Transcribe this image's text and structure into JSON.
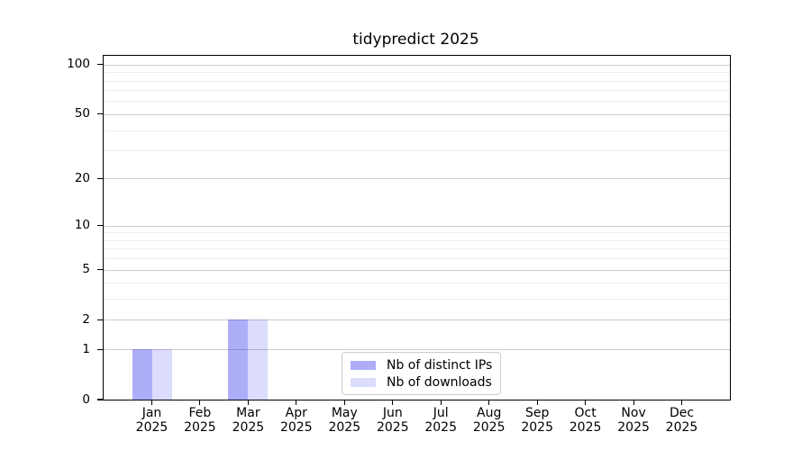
{
  "title": "tidypredict 2025",
  "chart_data": {
    "type": "bar",
    "title": "tidypredict 2025",
    "xlabel": "",
    "ylabel": "",
    "categories": [
      {
        "line1": "Jan",
        "line2": "2025"
      },
      {
        "line1": "Feb",
        "line2": "2025"
      },
      {
        "line1": "Mar",
        "line2": "2025"
      },
      {
        "line1": "Apr",
        "line2": "2025"
      },
      {
        "line1": "May",
        "line2": "2025"
      },
      {
        "line1": "Jun",
        "line2": "2025"
      },
      {
        "line1": "Jul",
        "line2": "2025"
      },
      {
        "line1": "Aug",
        "line2": "2025"
      },
      {
        "line1": "Sep",
        "line2": "2025"
      },
      {
        "line1": "Oct",
        "line2": "2025"
      },
      {
        "line1": "Nov",
        "line2": "2025"
      },
      {
        "line1": "Dec",
        "line2": "2025"
      }
    ],
    "series": [
      {
        "name": "Nb of distinct IPs",
        "color": "rgba(20,20,235,0.35)",
        "values": [
          1,
          0,
          2,
          0,
          0,
          0,
          0,
          0,
          0,
          0,
          0,
          0
        ]
      },
      {
        "name": "Nb of downloads",
        "color": "rgba(20,20,235,0.15)",
        "values": [
          1,
          0,
          2,
          0,
          0,
          0,
          0,
          0,
          0,
          0,
          0,
          0
        ]
      }
    ],
    "y_axis": {
      "scale": "log1p",
      "labeled_ticks": [
        0,
        1,
        2,
        5,
        10,
        20,
        50,
        100
      ],
      "minor_ticks": [
        3,
        4,
        6,
        7,
        8,
        9,
        30,
        40,
        60,
        70,
        80,
        90
      ],
      "ymax": 113
    },
    "grid": {
      "major_color": "#cccccc",
      "minor_color": "#ececec"
    },
    "legend": {
      "position": "bottom-center"
    }
  }
}
